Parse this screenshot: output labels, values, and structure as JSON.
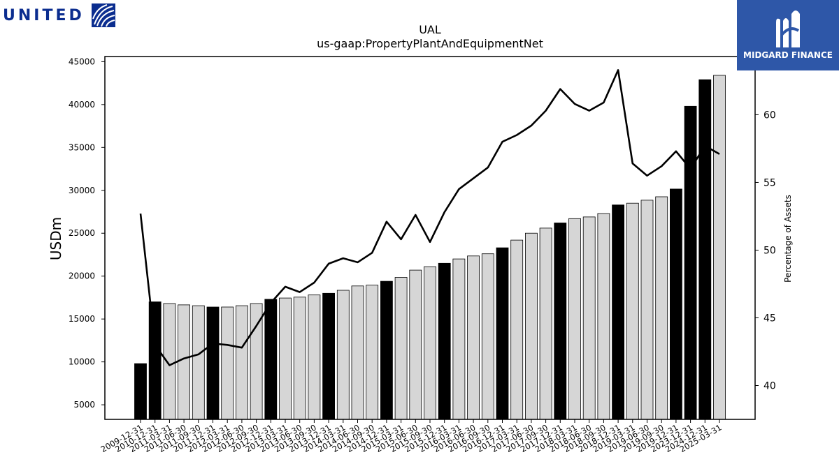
{
  "branding": {
    "left_logo_text": "UNITED",
    "right_logo_text": "MIDGARD FINANCE"
  },
  "colors": {
    "bar_annual": "#000000",
    "bar_quarterly": "#d6d6d6",
    "line": "#000000",
    "logo_blue": "#2e57a8",
    "united_blue": "#0b2d8f"
  },
  "chart_data": {
    "type": "bar",
    "title": "UAL",
    "subtitle": "us-gaap:PropertyPlantAndEquipmentNet",
    "ylabel": "USDm",
    "y2label": "Percentage of Assets",
    "ylim": [
      3300,
      45600
    ],
    "y2lim": [
      37.5,
      64.3
    ],
    "yticks": [
      5000,
      10000,
      15000,
      20000,
      25000,
      30000,
      35000,
      40000,
      45000
    ],
    "y2ticks": [
      40,
      45,
      50,
      55,
      60
    ],
    "grid": false,
    "categories": [
      "2009-12-31",
      "2010-12-31",
      "2011-03-31",
      "2011-06-30",
      "2011-09-30",
      "2011-12-31",
      "2012-03-31",
      "2012-06-30",
      "2012-09-30",
      "2012-12-31",
      "2013-03-31",
      "2013-06-30",
      "2013-09-30",
      "2013-12-31",
      "2014-03-31",
      "2014-06-30",
      "2014-09-30",
      "2014-12-31",
      "2015-03-31",
      "2015-06-30",
      "2015-09-30",
      "2015-12-31",
      "2016-03-31",
      "2016-06-30",
      "2016-09-30",
      "2016-12-31",
      "2017-03-31",
      "2017-06-30",
      "2017-09-30",
      "2017-12-31",
      "2018-03-31",
      "2018-06-30",
      "2018-09-30",
      "2018-12-31",
      "2019-03-31",
      "2019-06-30",
      "2019-09-30",
      "2019-12-31",
      "2023-12-31",
      "2024-12-31",
      "2025-03-31"
    ],
    "series": [
      {
        "type": "bar",
        "values": [
          9800,
          17000,
          16800,
          16650,
          16550,
          16400,
          16400,
          16550,
          16800,
          17300,
          17450,
          17550,
          17800,
          18000,
          18350,
          18850,
          18950,
          19400,
          19850,
          20700,
          21100,
          21500,
          22000,
          22350,
          22600,
          23300,
          24200,
          25000,
          25600,
          26200,
          26700,
          26900,
          27300,
          28300,
          28500,
          28850,
          29250,
          30150,
          39800,
          42900,
          43400
        ],
        "annual": [
          true,
          true,
          false,
          false,
          false,
          true,
          false,
          false,
          false,
          true,
          false,
          false,
          false,
          true,
          false,
          false,
          false,
          true,
          false,
          false,
          false,
          true,
          false,
          false,
          false,
          true,
          false,
          false,
          false,
          true,
          false,
          false,
          false,
          true,
          false,
          false,
          false,
          true,
          true,
          true,
          false
        ]
      },
      {
        "type": "line",
        "axis": "right",
        "values": [
          52.7,
          43.0,
          41.5,
          42.0,
          42.3,
          43.1,
          43.0,
          42.8,
          44.4,
          46.1,
          47.3,
          46.9,
          47.6,
          49.0,
          49.4,
          49.1,
          49.8,
          52.1,
          50.8,
          52.6,
          50.6,
          52.8,
          54.5,
          55.3,
          56.1,
          58.0,
          58.5,
          59.2,
          60.3,
          61.9,
          60.8,
          60.3,
          60.9,
          63.3,
          56.4,
          55.5,
          56.2,
          57.3,
          56.0,
          57.7,
          57.1
        ]
      }
    ]
  }
}
